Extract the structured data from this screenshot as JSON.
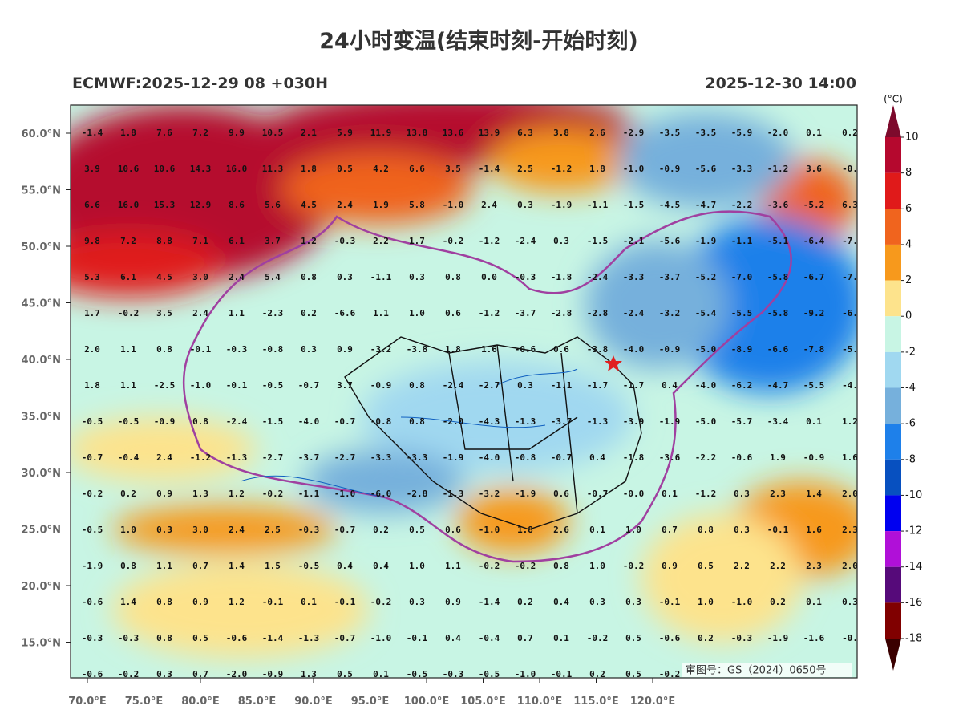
{
  "header": {
    "title": "24小时变温(结束时刻-开始时刻)",
    "left": "ECMWF:2025-12-29 08 +030H",
    "right": "2025-12-30 14:00",
    "review_number": "审图号：GS（2024）0650号"
  },
  "axes": {
    "lat_labels": [
      "60.0°N",
      "55.0°N",
      "50.0°N",
      "45.0°N",
      "40.0°N",
      "35.0°N",
      "30.0°N",
      "25.0°N",
      "20.0°N",
      "15.0°N"
    ],
    "lon_labels": [
      "70.0°E",
      "75.0°E",
      "80.0°E",
      "85.0°E",
      "90.0°E",
      "95.0°E",
      "100.0°E",
      "105.0°E",
      "110.0°E",
      "115.0°E",
      "120.0°E"
    ]
  },
  "colorbar": {
    "unit": "(°C)",
    "ticks": [
      10,
      8,
      6,
      4,
      2,
      0,
      -2,
      -4,
      -6,
      -8,
      -10,
      -12,
      -14,
      -16,
      -18
    ],
    "colors": [
      "#7d0a2c",
      "#b5082e",
      "#e01a1a",
      "#f0641e",
      "#f7991c",
      "#fde38c",
      "#c8f5e4",
      "#a0d8f0",
      "#76b0dc",
      "#1e80ea",
      "#0750c0",
      "#0000f0",
      "#b010d8",
      "#560a7a",
      "#800000",
      "#3a0000"
    ]
  },
  "grid": {
    "rows": [
      [
        "-1.4",
        "1.8",
        "7.6",
        "7.2",
        "9.9",
        "10.5",
        "2.1",
        "5.9",
        "11.9",
        "13.8",
        "13.6",
        "13.9",
        "6.3",
        "3.8",
        "2.6",
        "-2.9",
        "-3.5",
        "-3.5",
        "-5.9",
        "-2.0",
        "0.1",
        "0.2"
      ],
      [
        "3.9",
        "10.6",
        "10.6",
        "14.3",
        "16.0",
        "11.3",
        "1.8",
        "0.5",
        "4.2",
        "6.6",
        "3.5",
        "-1.4",
        "2.5",
        "-1.2",
        "1.8",
        "-1.0",
        "-0.9",
        "-5.6",
        "-3.3",
        "-1.2",
        "3.6",
        "-0."
      ],
      [
        "6.6",
        "16.0",
        "15.3",
        "12.9",
        "8.6",
        "5.6",
        "4.5",
        "2.4",
        "1.9",
        "5.8",
        "-1.0",
        "2.4",
        "0.3",
        "-1.9",
        "-1.1",
        "-1.5",
        "-4.5",
        "-4.7",
        "-2.2",
        "-3.6",
        "-5.2",
        "6.3"
      ],
      [
        "9.8",
        "7.2",
        "8.8",
        "7.1",
        "6.1",
        "3.7",
        "1.2",
        "-0.3",
        "2.2",
        "1.7",
        "-0.2",
        "-1.2",
        "-2.4",
        "0.3",
        "-1.5",
        "-2.1",
        "-5.6",
        "-1.9",
        "-1.1",
        "-5.1",
        "-6.4",
        "-7."
      ],
      [
        "5.3",
        "6.1",
        "4.5",
        "3.0",
        "2.4",
        "5.4",
        "0.8",
        "0.3",
        "-1.1",
        "0.3",
        "0.8",
        "0.0",
        "-0.3",
        "-1.8",
        "-2.4",
        "-3.3",
        "-3.7",
        "-5.2",
        "-7.0",
        "-5.8",
        "-6.7",
        "-7."
      ],
      [
        "1.7",
        "-0.2",
        "3.5",
        "2.4",
        "1.1",
        "-2.3",
        "0.2",
        "-6.6",
        "1.1",
        "1.0",
        "0.6",
        "-1.2",
        "-3.7",
        "-2.8",
        "-2.8",
        "-2.4",
        "-3.2",
        "-5.4",
        "-5.5",
        "-5.8",
        "-9.2",
        "-6."
      ],
      [
        "2.0",
        "1.1",
        "0.8",
        "-0.1",
        "-0.3",
        "-0.8",
        "0.3",
        "0.9",
        "-3.2",
        "-3.8",
        "1.8",
        "1.6",
        "-0.6",
        "0.6",
        "-3.8",
        "-4.0",
        "-0.9",
        "-5.0",
        "-8.9",
        "-6.6",
        "-7.8",
        "-5."
      ],
      [
        "1.8",
        "1.1",
        "-2.5",
        "-1.0",
        "-0.1",
        "-0.5",
        "-0.7",
        "3.7",
        "-0.9",
        "0.8",
        "-2.4",
        "-2.7",
        "0.3",
        "-1.1",
        "-1.7",
        "-1.7",
        "0.4",
        "-4.0",
        "-6.2",
        "-4.7",
        "-5.5",
        "-4."
      ],
      [
        "-0.5",
        "-0.5",
        "-0.9",
        "0.8",
        "-2.4",
        "-1.5",
        "-4.0",
        "-0.7",
        "-0.8",
        "0.8",
        "-2.0",
        "-4.3",
        "-1.3",
        "-3.7",
        "-1.3",
        "-3.9",
        "-1.9",
        "-5.0",
        "-5.7",
        "-3.4",
        "0.1",
        "1.2"
      ],
      [
        "-0.7",
        "-0.4",
        "2.4",
        "-1.2",
        "-1.3",
        "-2.7",
        "-3.7",
        "-2.7",
        "-3.3",
        "-3.3",
        "-1.9",
        "-4.0",
        "-0.8",
        "-0.7",
        "0.4",
        "-1.8",
        "-3.6",
        "-2.2",
        "-0.6",
        "1.9",
        "-0.9",
        "1.6"
      ],
      [
        "-0.2",
        "0.2",
        "0.9",
        "1.3",
        "1.2",
        "-0.2",
        "-1.1",
        "-1.0",
        "-6.0",
        "-2.8",
        "-1.3",
        "-3.2",
        "-1.9",
        "0.6",
        "-0.7",
        "-0.0",
        "0.1",
        "-1.2",
        "0.3",
        "2.3",
        "1.4",
        "2.0"
      ],
      [
        "-0.5",
        "1.0",
        "0.3",
        "3.0",
        "2.4",
        "2.5",
        "-0.3",
        "-0.7",
        "0.2",
        "0.5",
        "0.6",
        "-1.0",
        "1.8",
        "2.6",
        "0.1",
        "1.0",
        "0.7",
        "0.8",
        "0.3",
        "-0.1",
        "1.6",
        "2.3"
      ],
      [
        "-1.9",
        "0.8",
        "1.1",
        "0.7",
        "1.4",
        "1.5",
        "-0.5",
        "0.4",
        "0.4",
        "1.0",
        "1.1",
        "-0.2",
        "-0.2",
        "0.8",
        "1.0",
        "-0.2",
        "0.9",
        "0.5",
        "2.2",
        "2.2",
        "2.3",
        "2.0"
      ],
      [
        "-0.6",
        "1.4",
        "0.8",
        "0.9",
        "1.2",
        "-0.1",
        "0.1",
        "-0.1",
        "-0.2",
        "0.3",
        "0.9",
        "-1.4",
        "0.2",
        "0.4",
        "0.3",
        "0.3",
        "-0.1",
        "1.0",
        "-1.0",
        "0.2",
        "0.1",
        "0.3"
      ],
      [
        "-0.3",
        "-0.3",
        "0.8",
        "0.5",
        "-0.6",
        "-1.4",
        "-1.3",
        "-0.7",
        "-1.0",
        "-0.1",
        "0.4",
        "-0.4",
        "0.7",
        "0.1",
        "-0.2",
        "0.5",
        "-0.6",
        "0.2",
        "-0.3",
        "-1.9",
        "-1.6",
        "-0."
      ],
      [
        "-0.6",
        "-0.2",
        "0.3",
        "0.7",
        "-2.0",
        "-0.9",
        "1.3",
        "0.5",
        "0.1",
        "-0.5",
        "-0.3",
        "-0.5",
        "-1.0",
        "-0.1",
        "0.2",
        "0.5",
        "-0.2"
      ]
    ]
  }
}
